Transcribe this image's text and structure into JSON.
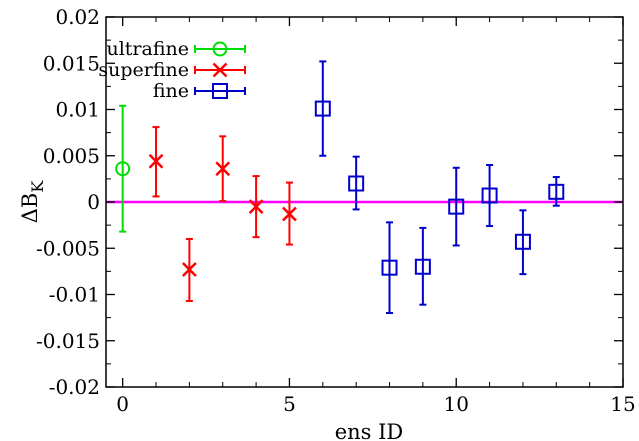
{
  "chart_data": {
    "type": "scatter",
    "title": "",
    "xlabel": "ens ID",
    "ylabel_main": "ΔB",
    "ylabel_sub": "K",
    "xlim": [
      -0.5,
      15
    ],
    "ylim": [
      -0.02,
      0.02
    ],
    "xticks": [
      0,
      5,
      10,
      15
    ],
    "yticks": [
      -0.02,
      -0.015,
      -0.01,
      -0.005,
      0,
      0.005,
      0.01,
      0.015,
      0.02
    ],
    "ytick_labels": [
      "-0.02",
      "-0.015",
      "-0.01",
      "-0.005",
      "0",
      "0.005",
      "0.01",
      "0.015",
      "0.02"
    ],
    "xtick_labels": [
      "0",
      "5",
      "10",
      "15"
    ],
    "reference_line": {
      "y": 0,
      "color": "#ff00ff"
    },
    "legend_position": "top-left",
    "series": [
      {
        "name": "ultrafine",
        "marker": "circle",
        "color": "#00dd00",
        "points": [
          {
            "x": 0,
            "y": 0.0036,
            "ylo": -0.0032,
            "yhi": 0.0104
          }
        ]
      },
      {
        "name": "superfine",
        "marker": "x",
        "color": "#ff0000",
        "points": [
          {
            "x": 1,
            "y": 0.0044,
            "ylo": 0.0006,
            "yhi": 0.0081
          },
          {
            "x": 2,
            "y": -0.0073,
            "ylo": -0.0107,
            "yhi": -0.004
          },
          {
            "x": 3,
            "y": 0.0036,
            "ylo": 0.0001,
            "yhi": 0.0071
          },
          {
            "x": 4,
            "y": -0.0005,
            "ylo": -0.0038,
            "yhi": 0.0028
          },
          {
            "x": 5,
            "y": -0.0013,
            "ylo": -0.0046,
            "yhi": 0.0021
          }
        ]
      },
      {
        "name": "fine",
        "marker": "square",
        "color": "#0000cc",
        "points": [
          {
            "x": 6,
            "y": 0.0101,
            "ylo": 0.005,
            "yhi": 0.0152
          },
          {
            "x": 7,
            "y": 0.002,
            "ylo": -0.0008,
            "yhi": 0.0049
          },
          {
            "x": 8,
            "y": -0.0071,
            "ylo": -0.012,
            "yhi": -0.0022
          },
          {
            "x": 9,
            "y": -0.007,
            "ylo": -0.0111,
            "yhi": -0.0028
          },
          {
            "x": 10,
            "y": -0.0005,
            "ylo": -0.0047,
            "yhi": 0.0037
          },
          {
            "x": 11,
            "y": 0.0007,
            "ylo": -0.0026,
            "yhi": 0.004
          },
          {
            "x": 12,
            "y": -0.0043,
            "ylo": -0.0078,
            "yhi": -0.0009
          },
          {
            "x": 13,
            "y": 0.0011,
            "ylo": -0.0004,
            "yhi": 0.0027
          }
        ]
      }
    ]
  }
}
